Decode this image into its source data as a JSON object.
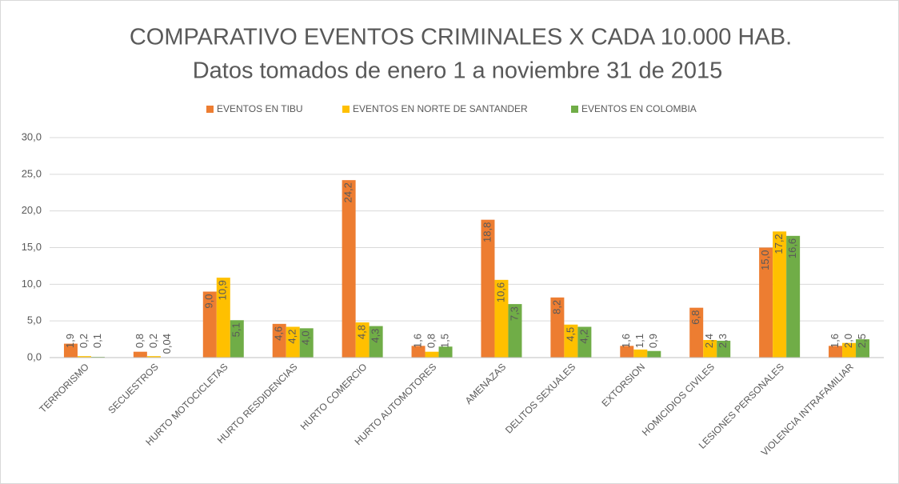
{
  "chart_data": {
    "type": "bar",
    "title": "COMPARATIVO EVENTOS CRIMINALES X CADA 10.000 HAB.",
    "subtitle": "Datos tomados de enero 1 a noviembre 31 de 2015",
    "categories": [
      "TERRORISMO",
      "SECUESTROS",
      "HURTO MOTOCICLETAS",
      "HURTO RESDIDENCIAS",
      "HURTO COMERCIO",
      "HURTO AUTOMOTORES",
      "AMENAZAS",
      "DELITOS SEXUALES",
      "EXTORSION",
      "HOMICIDIOS CIVILES",
      "LESIONES PERSONALES",
      "VIOLENCIA INTRAFAMILIAR"
    ],
    "series": [
      {
        "name": "EVENTOS EN TIBU",
        "color": "#ed7d31",
        "values": [
          1.9,
          0.8,
          9.0,
          4.6,
          24.2,
          1.6,
          18.8,
          8.2,
          1.6,
          6.8,
          15.0,
          1.6
        ],
        "value_labels": [
          "1,9",
          "0,8",
          "9,0",
          "4,6",
          "24,2",
          "1,6",
          "18,8",
          "8,2",
          "1,6",
          "6,8",
          "15,0",
          "1,6"
        ]
      },
      {
        "name": "EVENTOS EN NORTE DE SANTANDER",
        "color": "#ffc000",
        "values": [
          0.2,
          0.2,
          10.9,
          4.2,
          4.8,
          0.8,
          10.6,
          4.5,
          1.1,
          2.4,
          17.2,
          2.0
        ],
        "value_labels": [
          "0,2",
          "0,2",
          "10,9",
          "4,2",
          "4,8",
          "0,8",
          "10,6",
          "4,5",
          "1,1",
          "2,4",
          "17,2",
          "2,0"
        ]
      },
      {
        "name": "EVENTOS EN COLOMBIA",
        "color": "#70ad47",
        "values": [
          0.1,
          0.04,
          5.1,
          4.0,
          4.3,
          1.5,
          7.3,
          4.2,
          0.9,
          2.3,
          16.6,
          2.5
        ],
        "value_labels": [
          "0,1",
          "0,04",
          "5,1",
          "4,0",
          "4,3",
          "1,5",
          "7,3",
          "4,2",
          "0,9",
          "2,3",
          "16,6",
          "2,5"
        ]
      }
    ],
    "ylim": [
      0,
      30
    ],
    "yticks": [
      {
        "value": 0,
        "label": "0,0"
      },
      {
        "value": 5,
        "label": "5,0"
      },
      {
        "value": 10,
        "label": "10,0"
      },
      {
        "value": 15,
        "label": "15,0"
      },
      {
        "value": 20,
        "label": "20,0"
      },
      {
        "value": 25,
        "label": "25,0"
      },
      {
        "value": 30,
        "label": "30,0"
      }
    ],
    "grid": true,
    "legend": "top"
  }
}
